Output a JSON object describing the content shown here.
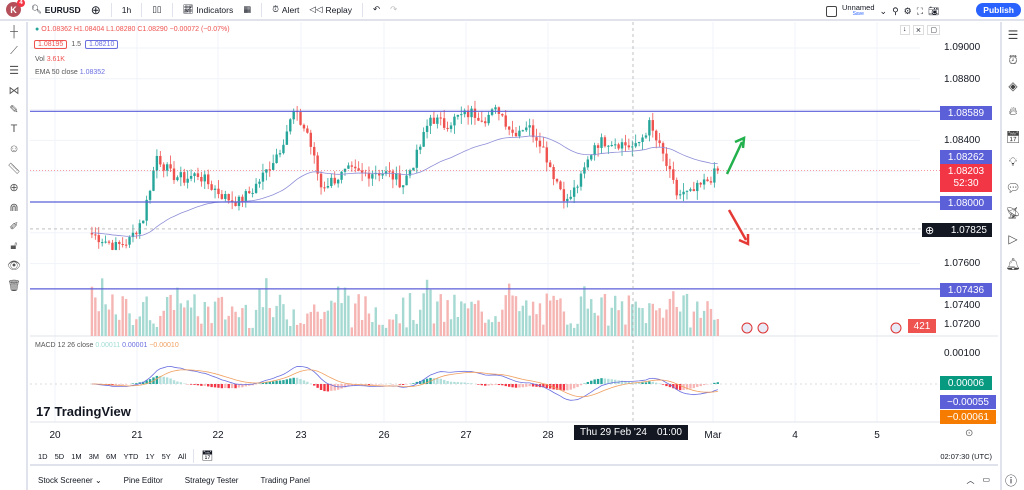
{
  "topbar": {
    "avatar": "K",
    "badge": "4",
    "symbol": "EURUSD",
    "interval": "1h",
    "indicators": "Indicators",
    "alert": "Alert",
    "replay": "Replay",
    "layout_name": "Unnamed",
    "layout_save": "Save",
    "publish": "Publish"
  },
  "legend": {
    "ohlc": "O1.08362 H1.08404 L1.08280 C1.08290 −0.00072 (−0.07%)",
    "bid": "1.08195",
    "spread": "1.5",
    "ask": "1.08210",
    "vol_label": "Vol",
    "vol_value": "3.61K",
    "ema_label": "EMA 50 close",
    "ema_value": "1.08352",
    "macd_label": "MACD 12 26 close",
    "macd_v1": "0.00011",
    "macd_v2": "0.00001",
    "macd_v3": "−0.00010"
  },
  "price_axis": {
    "ticks": [
      "1.09000",
      "1.08800",
      "1.08400",
      "1.07600",
      "1.07400",
      "1.07200"
    ],
    "macd_ticks": [
      "0.00100"
    ]
  },
  "price_labels": {
    "line1": "1.08589",
    "ema": "1.08262",
    "last": "1.08203",
    "countdown": "52:30",
    "line2": "1.08000",
    "crosshair": "1.07825",
    "line3": "1.07436",
    "volume": "421",
    "macd_hist": "0.00006",
    "macd_line": "−0.00055",
    "signal_line": "−0.00061"
  },
  "time_axis": {
    "labels": [
      "20",
      "21",
      "22",
      "23",
      "26",
      "27",
      "28",
      "Mar",
      "4",
      "5"
    ],
    "crosshair": "Thu 29 Feb '24",
    "crosshair_time": "01:00"
  },
  "watermark": "TradingView",
  "range_buttons": [
    "1D",
    "5D",
    "1M",
    "3M",
    "6M",
    "YTD",
    "1Y",
    "5Y",
    "All"
  ],
  "clock": "02:07:30 (UTC)",
  "bottom_tabs": [
    "Stock Screener",
    "Pine Editor",
    "Strategy Tester",
    "Trading Panel"
  ],
  "colors": {
    "up": "#26a69a",
    "down": "#ef5350",
    "hline": "#5b5fd8",
    "ema": "#8e8ed8",
    "macd": "#6a6fe0",
    "signal": "#f0a060",
    "last": "#f23645",
    "accent": "#2962ff"
  },
  "chart_data": {
    "type": "candlestick",
    "symbol": "EURUSD",
    "interval": "1h",
    "horizontal_lines": [
      1.08589,
      1.08,
      1.07436
    ],
    "closes_4h": [
      1.078,
      1.0776,
      1.0771,
      1.0775,
      1.079,
      1.083,
      1.0818,
      1.0815,
      1.0818,
      1.081,
      1.0803,
      1.08,
      1.0808,
      1.082,
      1.0835,
      1.0858,
      1.0845,
      1.081,
      1.0815,
      1.082,
      1.0818,
      1.082,
      1.0818,
      1.0812,
      1.083,
      1.0855,
      1.085,
      1.0855,
      1.0858,
      1.0855,
      1.086,
      1.0845,
      1.085,
      1.084,
      1.0818,
      1.08,
      1.0815,
      1.0838,
      1.084,
      1.0838,
      1.0835,
      1.085,
      1.083,
      1.0805,
      1.0805,
      1.0812,
      1.082
    ]
  }
}
